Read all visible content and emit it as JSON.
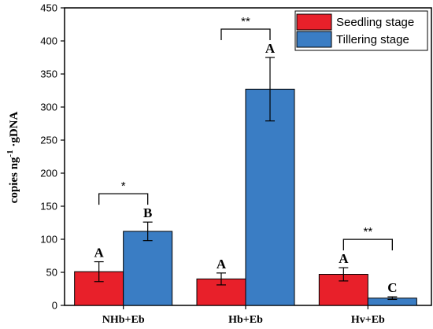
{
  "chart_data": {
    "type": "bar",
    "categories": [
      "NHb+Eb",
      "Hb+Eb",
      "Hv+Eb"
    ],
    "series": [
      {
        "name": "Seedling stage",
        "color": "#e8202a",
        "values": [
          51,
          40,
          47
        ],
        "errors": [
          15,
          9,
          10
        ],
        "letters": [
          "A",
          "A",
          "A"
        ]
      },
      {
        "name": "Tillering stage",
        "color": "#3a7dc4",
        "values": [
          112,
          327,
          11
        ],
        "errors": [
          14,
          48,
          2
        ],
        "letters": [
          "B",
          "A",
          "C"
        ]
      }
    ],
    "significance": [
      "*",
      "**",
      "**"
    ],
    "ylabel_main": "copies ng",
    "ylabel_sup": "-1",
    "ylabel_rest": " ·gDNA",
    "xlabel": "",
    "ylim": [
      0,
      450
    ],
    "yticks": [
      0,
      50,
      100,
      150,
      200,
      250,
      300,
      350,
      400,
      450
    ],
    "legend_position": "top-right",
    "grid": false
  }
}
